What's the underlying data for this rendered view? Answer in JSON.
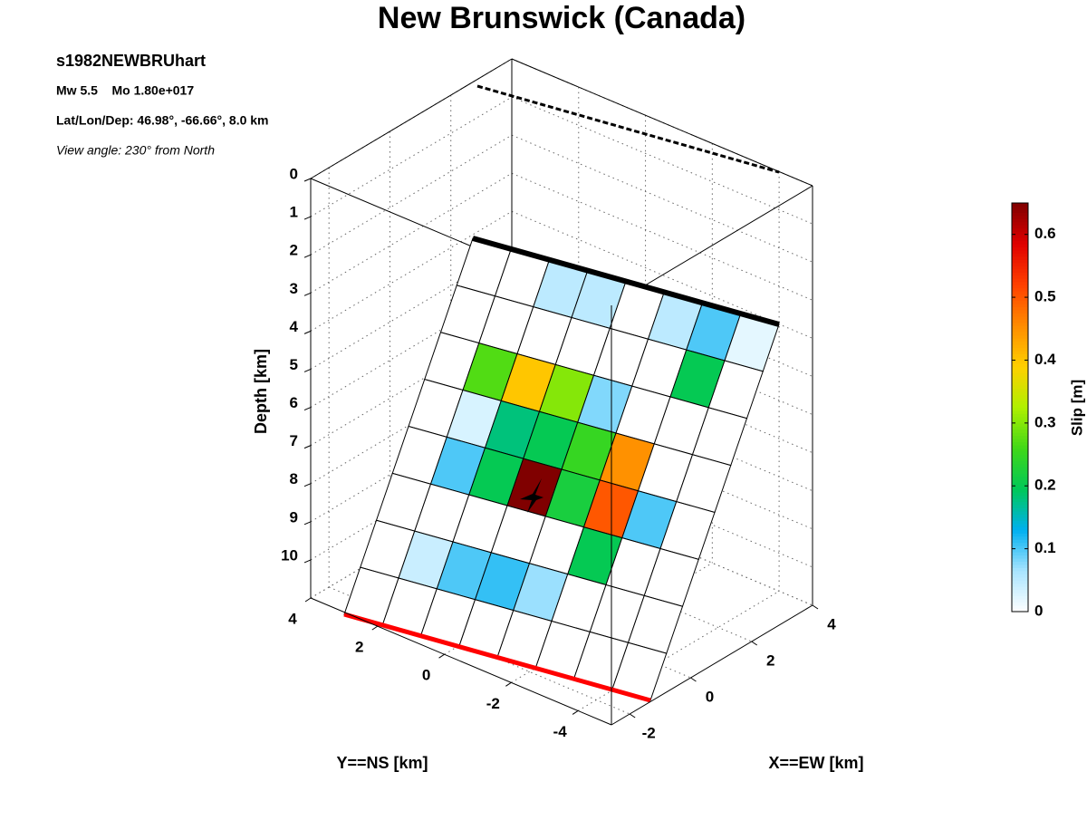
{
  "chart_data": {
    "type": "slip-map",
    "title": "New Brunswick (Canada)",
    "event": "s1982NEWBRUhart",
    "magnitude": "Mw 5.5    Mo 1.80e+017",
    "location": "Lat/Lon/Dep: 46.98°, -66.66°, 8.0 km",
    "view": "View angle: 230° from North",
    "xlabel": "X==EW [km]",
    "ylabel": "Y==NS [km]",
    "zlabel": "Depth [km]",
    "colorbar_label": "Slip [m]",
    "xlim": [
      -2.6,
      4
    ],
    "xticks": [
      -2,
      0,
      2,
      4
    ],
    "ylim": [
      -5,
      4
    ],
    "yticks": [
      -4,
      -2,
      0,
      2,
      4
    ],
    "zlim": [
      0,
      11
    ],
    "zticks": [
      0,
      1,
      2,
      3,
      4,
      5,
      6,
      7,
      8,
      9,
      10
    ],
    "clim": [
      0,
      0.65
    ],
    "cticks": [
      0,
      0.1,
      0.2,
      0.3,
      0.4,
      0.5,
      0.6
    ],
    "colormap": [
      "#ffffff",
      "#a8e4ff",
      "#00b0f0",
      "#00c858",
      "#40d818",
      "#b0f000",
      "#ffd000",
      "#ff8c00",
      "#ff4000",
      "#e00000",
      "#800000"
    ],
    "grid": true,
    "values": [
      [
        0,
        0,
        0.05,
        0.05,
        0,
        0.05,
        0.1,
        0.02
      ],
      [
        0,
        0,
        0,
        0,
        0,
        0,
        0.2,
        0
      ],
      [
        0,
        0.27,
        0.4,
        0.3,
        0.08,
        0,
        0,
        0
      ],
      [
        0,
        0.03,
        0.18,
        0.2,
        0.25,
        0.45,
        0,
        0
      ],
      [
        0,
        0.1,
        0.2,
        0.65,
        0.22,
        0.5,
        0.1,
        0
      ],
      [
        0,
        0,
        0,
        0,
        0,
        0.2,
        0,
        0
      ],
      [
        0,
        0.04,
        0.1,
        0.11,
        0.07,
        0,
        0,
        0
      ],
      [
        0,
        0,
        0,
        0,
        0,
        0,
        0,
        0
      ]
    ]
  }
}
